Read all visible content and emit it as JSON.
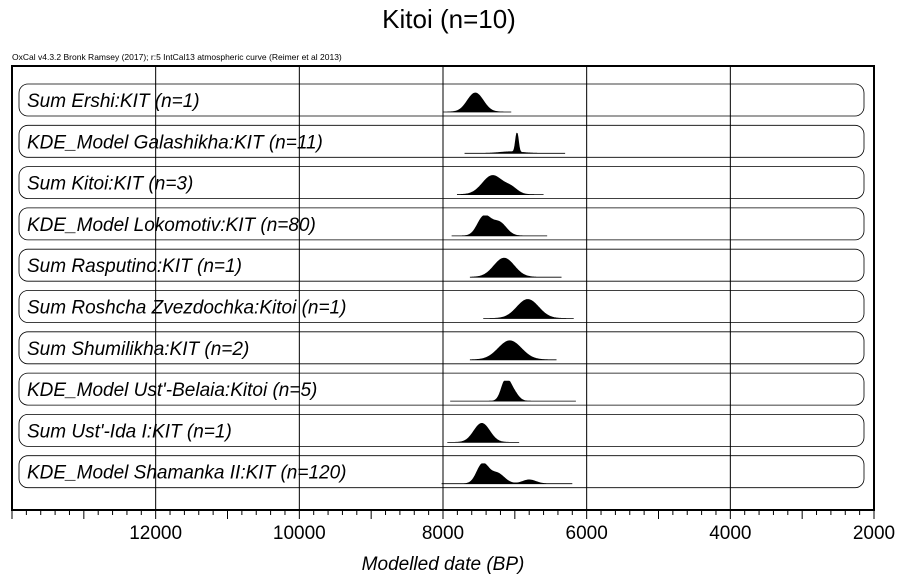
{
  "chart_data": {
    "type": "area",
    "title": "Kitoi (n=10)",
    "subtitle": "OxCal v4.3.2 Bronk Ramsey (2017); r:5 IntCal13 atmospheric curve (Reimer et al 2013)",
    "xlabel": "Modelled date (BP)",
    "xlim": [
      14000,
      2000
    ],
    "x_reversed": true,
    "xticks": [
      12000,
      10000,
      8000,
      6000,
      4000,
      2000
    ],
    "grid": true,
    "series": [
      {
        "name": "Sum Ershi:KIT (n=1)",
        "range": [
          8000,
          7050
        ],
        "peaks": [
          {
            "x": 7550,
            "h": 1.0,
            "w": 110
          }
        ]
      },
      {
        "name": "KDE_Model Galashikha:KIT (n=11)",
        "range": [
          7700,
          6300
        ],
        "peaks": [
          {
            "x": 6970,
            "h": 1.0,
            "w": 20
          },
          {
            "x": 7050,
            "h": 0.08,
            "w": 150
          }
        ]
      },
      {
        "name": "Sum Kitoi:KIT (n=3)",
        "range": [
          7800,
          6600
        ],
        "peaks": [
          {
            "x": 7310,
            "h": 1.0,
            "w": 140
          },
          {
            "x": 7050,
            "h": 0.3,
            "w": 90
          }
        ]
      },
      {
        "name": "KDE_Model Lokomotiv:KIT (n=80)",
        "range": [
          7880,
          6550
        ],
        "peaks": [
          {
            "x": 7430,
            "h": 1.0,
            "w": 90
          },
          {
            "x": 7220,
            "h": 0.7,
            "w": 100
          }
        ]
      },
      {
        "name": "Sum Rasputino:KIT (n=1)",
        "range": [
          7620,
          6350
        ],
        "peaks": [
          {
            "x": 7150,
            "h": 1.0,
            "w": 140
          }
        ]
      },
      {
        "name": "Sum Roshcha Zvezdochka:Kitoi (n=1)",
        "range": [
          7440,
          6180
        ],
        "peaks": [
          {
            "x": 6820,
            "h": 1.0,
            "w": 150
          }
        ]
      },
      {
        "name": "Sum Shumilikha:KIT (n=2)",
        "range": [
          7620,
          6420
        ],
        "peaks": [
          {
            "x": 7070,
            "h": 1.0,
            "w": 160
          }
        ]
      },
      {
        "name": "KDE_Model Ust'-Belaia:Kitoi (n=5)",
        "range": [
          7900,
          6150
        ],
        "peaks": [
          {
            "x": 7130,
            "h": 1.0,
            "w": 60
          },
          {
            "x": 7030,
            "h": 0.5,
            "w": 70
          }
        ]
      },
      {
        "name": "Sum Ust'-Ida I:KIT (n=1)",
        "range": [
          7940,
          6940
        ],
        "peaks": [
          {
            "x": 7460,
            "h": 1.0,
            "w": 110
          }
        ]
      },
      {
        "name": "KDE_Model Shamanka II:KIT (n=120)",
        "range": [
          8020,
          6200
        ],
        "peaks": [
          {
            "x": 7450,
            "h": 1.0,
            "w": 80
          },
          {
            "x": 7250,
            "h": 0.55,
            "w": 100
          },
          {
            "x": 6800,
            "h": 0.2,
            "w": 90
          }
        ]
      }
    ]
  }
}
